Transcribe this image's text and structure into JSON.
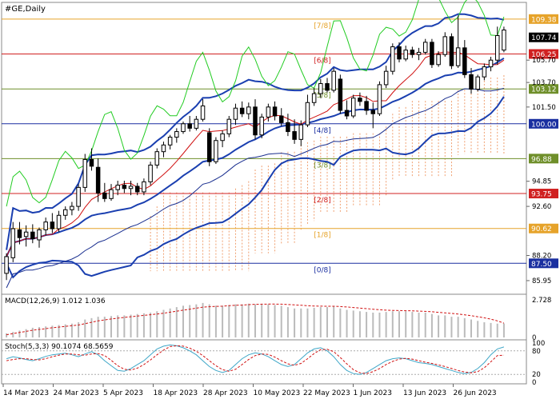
{
  "header": {
    "symbol_label": "#GE,Daily"
  },
  "chart_data": {
    "type": "candlestick",
    "instrument": "#GE",
    "timeframe": "Daily",
    "y_range": [
      84.8,
      110.8
    ],
    "y_ticks": [
      {
        "value": 105.7,
        "label": "105.70"
      },
      {
        "value": 103.7,
        "label": "103.70"
      },
      {
        "value": 101.5,
        "label": "101.50"
      },
      {
        "value": 94.85,
        "label": "94.85"
      },
      {
        "value": 92.6,
        "label": "92.60"
      },
      {
        "value": 88.2,
        "label": "88.20"
      },
      {
        "value": 85.95,
        "label": "85.95"
      }
    ],
    "price_levels": [
      {
        "value": 109.38,
        "label": "109.38",
        "murrey": "[7/8]",
        "color": "#e6a32a"
      },
      {
        "value": 106.25,
        "label": "106.25",
        "murrey": "[6/8]",
        "color": "#d02020"
      },
      {
        "value": 103.12,
        "label": "103.12",
        "murrey": "[5/8]",
        "color": "#6f8f2a"
      },
      {
        "value": 100.0,
        "label": "100.00",
        "murrey": "[4/8]",
        "color": "#1a2fa0"
      },
      {
        "value": 96.88,
        "label": "96.88",
        "murrey": "[3/8]",
        "color": "#6f8f2a"
      },
      {
        "value": 93.75,
        "label": "93.75",
        "murrey": "[2/8]",
        "color": "#d02020"
      },
      {
        "value": 90.62,
        "label": "90.62",
        "murrey": "[1/8]",
        "color": "#e6a32a"
      },
      {
        "value": 87.5,
        "label": "87.50",
        "murrey": "[0/8]",
        "color": "#1a2fa0"
      }
    ],
    "current_price": {
      "value": 107.74,
      "label": "107.74"
    },
    "x_labels": [
      "14 Mar 2023",
      "24 Mar 2023",
      "5 Apr 2023",
      "18 Apr 2023",
      "28 Apr 2023",
      "10 May 2023",
      "22 May 2023",
      "1 Jun 2023",
      "13 Jun 2023",
      "26 Jun 2023"
    ],
    "candles": [
      {
        "o": 86.6,
        "h": 88.4,
        "l": 86.0,
        "c": 88.1
      },
      {
        "o": 88.0,
        "h": 91.2,
        "l": 87.6,
        "c": 90.6
      },
      {
        "o": 90.5,
        "h": 91.2,
        "l": 89.2,
        "c": 89.8
      },
      {
        "o": 89.9,
        "h": 90.9,
        "l": 89.0,
        "c": 90.3
      },
      {
        "o": 90.3,
        "h": 91.0,
        "l": 89.3,
        "c": 89.7
      },
      {
        "o": 89.6,
        "h": 90.7,
        "l": 88.9,
        "c": 90.5
      },
      {
        "o": 90.5,
        "h": 91.6,
        "l": 90.0,
        "c": 91.2
      },
      {
        "o": 91.2,
        "h": 92.0,
        "l": 90.2,
        "c": 90.6
      },
      {
        "o": 90.6,
        "h": 92.2,
        "l": 90.3,
        "c": 91.8
      },
      {
        "o": 91.8,
        "h": 92.6,
        "l": 91.4,
        "c": 92.3
      },
      {
        "o": 92.3,
        "h": 93.0,
        "l": 91.8,
        "c": 92.6
      },
      {
        "o": 92.6,
        "h": 94.6,
        "l": 92.2,
        "c": 94.3
      },
      {
        "o": 94.3,
        "h": 97.3,
        "l": 93.9,
        "c": 96.8
      },
      {
        "o": 96.8,
        "h": 97.8,
        "l": 95.8,
        "c": 96.2
      },
      {
        "o": 96.1,
        "h": 96.9,
        "l": 93.0,
        "c": 93.8
      },
      {
        "o": 93.8,
        "h": 94.7,
        "l": 93.0,
        "c": 93.3
      },
      {
        "o": 93.3,
        "h": 94.6,
        "l": 93.1,
        "c": 94.1
      },
      {
        "o": 94.1,
        "h": 94.9,
        "l": 93.6,
        "c": 94.5
      },
      {
        "o": 94.5,
        "h": 94.9,
        "l": 93.8,
        "c": 94.2
      },
      {
        "o": 94.2,
        "h": 94.9,
        "l": 93.6,
        "c": 94.4
      },
      {
        "o": 94.4,
        "h": 94.7,
        "l": 93.6,
        "c": 93.9
      },
      {
        "o": 93.9,
        "h": 95.1,
        "l": 93.6,
        "c": 94.8
      },
      {
        "o": 94.8,
        "h": 96.6,
        "l": 94.5,
        "c": 96.3
      },
      {
        "o": 96.3,
        "h": 97.8,
        "l": 96.0,
        "c": 97.5
      },
      {
        "o": 97.5,
        "h": 98.4,
        "l": 97.0,
        "c": 98.1
      },
      {
        "o": 98.1,
        "h": 99.0,
        "l": 97.7,
        "c": 98.8
      },
      {
        "o": 98.8,
        "h": 99.6,
        "l": 98.3,
        "c": 99.3
      },
      {
        "o": 99.3,
        "h": 100.2,
        "l": 99.1,
        "c": 100.0
      },
      {
        "o": 100.0,
        "h": 100.7,
        "l": 99.3,
        "c": 99.6
      },
      {
        "o": 99.6,
        "h": 100.7,
        "l": 99.4,
        "c": 100.4
      },
      {
        "o": 100.4,
        "h": 102.2,
        "l": 100.2,
        "c": 101.6
      },
      {
        "o": 99.2,
        "h": 99.6,
        "l": 96.2,
        "c": 96.6
      },
      {
        "o": 96.6,
        "h": 98.8,
        "l": 96.4,
        "c": 98.5
      },
      {
        "o": 98.5,
        "h": 99.4,
        "l": 97.9,
        "c": 99.1
      },
      {
        "o": 99.1,
        "h": 100.7,
        "l": 98.8,
        "c": 100.4
      },
      {
        "o": 100.4,
        "h": 101.8,
        "l": 99.9,
        "c": 101.4
      },
      {
        "o": 101.4,
        "h": 102.0,
        "l": 100.6,
        "c": 100.9
      },
      {
        "o": 100.9,
        "h": 101.9,
        "l": 100.4,
        "c": 101.5
      },
      {
        "o": 101.5,
        "h": 102.2,
        "l": 98.6,
        "c": 99.0
      },
      {
        "o": 99.0,
        "h": 100.9,
        "l": 98.7,
        "c": 100.6
      },
      {
        "o": 100.6,
        "h": 101.8,
        "l": 100.2,
        "c": 101.5
      },
      {
        "o": 101.5,
        "h": 102.0,
        "l": 100.3,
        "c": 100.7
      },
      {
        "o": 100.7,
        "h": 101.4,
        "l": 99.8,
        "c": 100.1
      },
      {
        "o": 100.1,
        "h": 100.9,
        "l": 98.9,
        "c": 99.3
      },
      {
        "o": 99.3,
        "h": 100.4,
        "l": 98.2,
        "c": 98.6
      },
      {
        "o": 98.6,
        "h": 100.3,
        "l": 98.0,
        "c": 99.9
      },
      {
        "o": 99.9,
        "h": 102.6,
        "l": 99.7,
        "c": 101.9
      },
      {
        "o": 101.9,
        "h": 103.2,
        "l": 101.6,
        "c": 102.7
      },
      {
        "o": 102.7,
        "h": 104.0,
        "l": 102.3,
        "c": 103.6
      },
      {
        "o": 103.6,
        "h": 104.1,
        "l": 102.8,
        "c": 103.0
      },
      {
        "o": 103.0,
        "h": 105.0,
        "l": 102.8,
        "c": 104.7
      },
      {
        "o": 104.0,
        "h": 104.4,
        "l": 100.9,
        "c": 101.2
      },
      {
        "o": 101.2,
        "h": 102.1,
        "l": 100.4,
        "c": 100.7
      },
      {
        "o": 100.7,
        "h": 102.6,
        "l": 100.5,
        "c": 102.3
      },
      {
        "o": 102.3,
        "h": 102.8,
        "l": 101.6,
        "c": 102.0
      },
      {
        "o": 102.0,
        "h": 102.5,
        "l": 100.8,
        "c": 101.2
      },
      {
        "o": 101.2,
        "h": 101.9,
        "l": 99.6,
        "c": 100.9
      },
      {
        "o": 100.9,
        "h": 103.8,
        "l": 100.7,
        "c": 103.5
      },
      {
        "o": 103.5,
        "h": 105.2,
        "l": 103.2,
        "c": 104.7
      },
      {
        "o": 104.7,
        "h": 107.2,
        "l": 104.4,
        "c": 106.9
      },
      {
        "o": 106.9,
        "h": 107.3,
        "l": 105.5,
        "c": 105.8
      },
      {
        "o": 105.8,
        "h": 107.0,
        "l": 105.6,
        "c": 106.6
      },
      {
        "o": 106.6,
        "h": 106.9,
        "l": 105.9,
        "c": 106.2
      },
      {
        "o": 106.2,
        "h": 106.8,
        "l": 105.7,
        "c": 106.4
      },
      {
        "o": 106.4,
        "h": 107.6,
        "l": 106.2,
        "c": 107.3
      },
      {
        "o": 107.3,
        "h": 107.6,
        "l": 105.0,
        "c": 105.3
      },
      {
        "o": 105.3,
        "h": 106.5,
        "l": 105.1,
        "c": 106.2
      },
      {
        "o": 106.2,
        "h": 108.2,
        "l": 106.0,
        "c": 107.8
      },
      {
        "o": 107.8,
        "h": 108.1,
        "l": 104.9,
        "c": 105.2
      },
      {
        "o": 105.2,
        "h": 109.7,
        "l": 105.0,
        "c": 106.8
      },
      {
        "o": 106.8,
        "h": 107.5,
        "l": 104.1,
        "c": 104.4
      },
      {
        "o": 104.4,
        "h": 105.0,
        "l": 102.7,
        "c": 103.1
      },
      {
        "o": 103.1,
        "h": 104.4,
        "l": 102.9,
        "c": 104.2
      },
      {
        "o": 104.2,
        "h": 105.4,
        "l": 103.9,
        "c": 105.1
      },
      {
        "o": 105.1,
        "h": 106.0,
        "l": 104.7,
        "c": 105.7
      },
      {
        "o": 105.7,
        "h": 108.7,
        "l": 105.3,
        "c": 107.9
      },
      {
        "o": 106.6,
        "h": 108.7,
        "l": 106.4,
        "c": 108.4
      }
    ],
    "macd_panel": {
      "label": "MACD(12,26,9) 1.012 1.036",
      "y_ticks": [
        {
          "value": 2.728,
          "label": "2.728"
        },
        {
          "value": 0,
          "label": "0"
        }
      ],
      "y_range": [
        0,
        2.9
      ],
      "histogram": [
        0.3,
        0.4,
        0.5,
        0.6,
        0.7,
        0.75,
        0.8,
        0.85,
        0.9,
        0.95,
        1.0,
        1.1,
        1.3,
        1.4,
        1.5,
        1.5,
        1.55,
        1.6,
        1.6,
        1.65,
        1.7,
        1.75,
        1.8,
        1.9,
        2.0,
        2.1,
        2.2,
        2.3,
        2.35,
        2.4,
        2.5,
        2.4,
        2.3,
        2.3,
        2.35,
        2.4,
        2.4,
        2.45,
        2.4,
        2.4,
        2.4,
        2.35,
        2.3,
        2.2,
        2.1,
        2.1,
        2.1,
        2.15,
        2.2,
        2.2,
        2.25,
        2.1,
        2.0,
        1.95,
        1.9,
        1.85,
        1.8,
        1.8,
        1.85,
        1.9,
        1.9,
        1.9,
        1.85,
        1.8,
        1.8,
        1.7,
        1.6,
        1.6,
        1.5,
        1.5,
        1.4,
        1.3,
        1.2,
        1.1,
        1.05,
        1.0,
        1.01
      ],
      "signal": [
        0.2,
        0.28,
        0.36,
        0.44,
        0.52,
        0.58,
        0.64,
        0.7,
        0.75,
        0.8,
        0.85,
        0.9,
        1.0,
        1.1,
        1.2,
        1.27,
        1.34,
        1.4,
        1.45,
        1.5,
        1.55,
        1.6,
        1.65,
        1.7,
        1.76,
        1.83,
        1.9,
        1.98,
        2.05,
        2.12,
        2.2,
        2.23,
        2.25,
        2.27,
        2.3,
        2.33,
        2.35,
        2.38,
        2.4,
        2.41,
        2.42,
        2.42,
        2.41,
        2.39,
        2.36,
        2.33,
        2.3,
        2.28,
        2.27,
        2.26,
        2.26,
        2.24,
        2.21,
        2.17,
        2.13,
        2.09,
        2.05,
        2.01,
        1.98,
        1.96,
        1.95,
        1.94,
        1.93,
        1.91,
        1.89,
        1.86,
        1.82,
        1.78,
        1.74,
        1.7,
        1.64,
        1.58,
        1.5,
        1.42,
        1.33,
        1.2,
        1.04
      ]
    },
    "stoch_panel": {
      "label": "Stoch(5,3,3) 90.1074 68.5659",
      "y_ticks": [
        {
          "value": 100,
          "label": "100"
        },
        {
          "value": 80,
          "label": "80"
        },
        {
          "value": 20,
          "label": "20"
        },
        {
          "value": 0,
          "label": "0"
        }
      ],
      "y_range": [
        0,
        100
      ],
      "k": [
        60,
        65,
        62,
        58,
        55,
        60,
        66,
        70,
        72,
        74,
        70,
        65,
        72,
        78,
        70,
        55,
        42,
        30,
        28,
        35,
        45,
        55,
        70,
        85,
        92,
        95,
        93,
        88,
        80,
        70,
        55,
        40,
        30,
        25,
        30,
        45,
        60,
        70,
        75,
        72,
        65,
        55,
        45,
        40,
        45,
        60,
        75,
        85,
        88,
        80,
        65,
        45,
        30,
        22,
        20,
        25,
        35,
        45,
        55,
        60,
        62,
        60,
        55,
        50,
        48,
        45,
        40,
        35,
        30,
        25,
        22,
        25,
        35,
        50,
        70,
        85,
        90
      ],
      "d": [
        55,
        58,
        60,
        60,
        58,
        57,
        60,
        65,
        69,
        72,
        72,
        70,
        69,
        72,
        73,
        68,
        56,
        42,
        33,
        31,
        36,
        45,
        57,
        70,
        82,
        91,
        93,
        92,
        87,
        79,
        68,
        55,
        42,
        32,
        28,
        33,
        45,
        58,
        68,
        72,
        71,
        64,
        55,
        47,
        43,
        48,
        60,
        73,
        83,
        84,
        78,
        63,
        47,
        32,
        24,
        22,
        27,
        35,
        45,
        53,
        59,
        61,
        59,
        55,
        51,
        48,
        44,
        40,
        35,
        30,
        26,
        24,
        27,
        37,
        52,
        68,
        69
      ]
    },
    "overlays": {
      "bollinger": [
        "upper",
        "middle",
        "lower"
      ],
      "ichimoku_cloud": true,
      "moving_averages": true
    },
    "colors": {
      "bull_candle": "#ffffff",
      "bear_candle": "#000000",
      "upper_band": "#1a3fb0",
      "lower_band": "#1a2f8f",
      "ma_red": "#d01010",
      "oscillator_green": "#22cc22",
      "cloud": "#f0a070",
      "stoch_k": "#3fa7c8",
      "stoch_d": "#d01010"
    }
  }
}
